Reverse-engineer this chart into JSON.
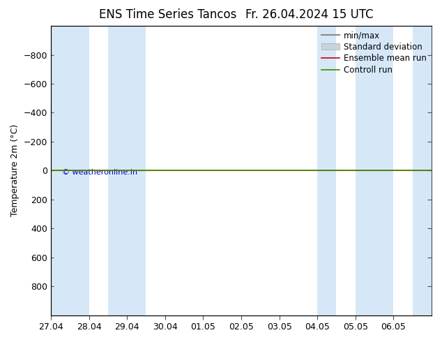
{
  "title": "ENS Time Series Tancos",
  "title2": "Fr. 26.04.2024 15 UTC",
  "ylabel": "Temperature 2m (°C)",
  "copyright": "© weatheronline.in",
  "ylim_top": -1000,
  "ylim_bottom": 1000,
  "yticks": [
    -800,
    -600,
    -400,
    -200,
    0,
    200,
    400,
    600,
    800
  ],
  "xlim_start": 0.0,
  "xlim_end": 10.0,
  "xtick_labels": [
    "27.04",
    "28.04",
    "29.04",
    "30.04",
    "01.05",
    "02.05",
    "03.05",
    "04.05",
    "05.05",
    "06.05"
  ],
  "xtick_positions": [
    0,
    1,
    2,
    3,
    4,
    5,
    6,
    7,
    8,
    9
  ],
  "shaded_bands": [
    [
      0.0,
      1.0
    ],
    [
      1.5,
      2.5
    ],
    [
      7.0,
      7.5
    ],
    [
      8.0,
      9.0
    ],
    [
      9.5,
      10.0
    ]
  ],
  "shade_color": "#d6e8f7",
  "control_run_color": "#3a8c00",
  "ensemble_mean_color": "#cc0000",
  "minmax_color": "#8a8a8a",
  "std_color": "#c8d4dc",
  "background_color": "#ffffff",
  "plot_bg": "#ffffff",
  "legend_entries": [
    "min/max",
    "Standard deviation",
    "Ensemble mean run",
    "Controll run"
  ],
  "legend_line_colors": [
    "#8a8a8a",
    "#c8d4dc",
    "#cc0000",
    "#3a8c00"
  ],
  "font_size_title": 12,
  "font_size_axis": 9,
  "font_size_legend": 8.5,
  "font_size_ticks": 9,
  "copyright_color": "#0000cc"
}
